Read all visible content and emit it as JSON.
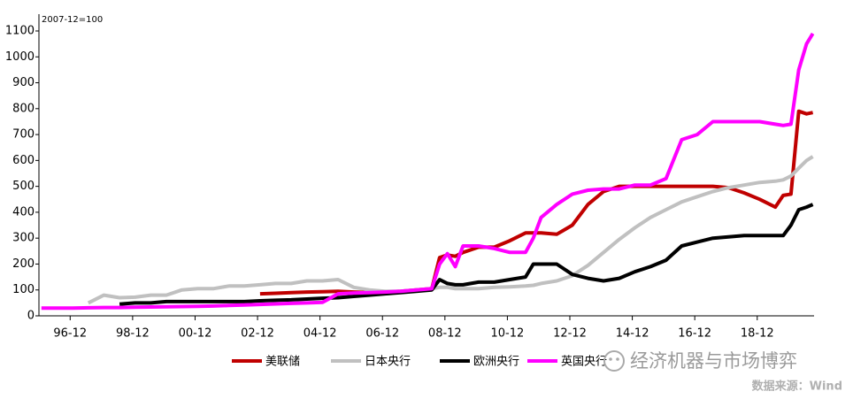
{
  "chart_data": {
    "type": "line",
    "annotation": "2007-12=100",
    "watermark": "经济机器与市场博弈",
    "source": "数据来源：Wind",
    "xlim": [
      1995.92,
      2020.74
    ],
    "xticks": [
      {
        "value": 1996.92,
        "label": "96-12"
      },
      {
        "value": 1998.92,
        "label": "98-12"
      },
      {
        "value": 2000.92,
        "label": "00-12"
      },
      {
        "value": 2002.92,
        "label": "02-12"
      },
      {
        "value": 2004.92,
        "label": "04-12"
      },
      {
        "value": 2006.92,
        "label": "06-12"
      },
      {
        "value": 2008.92,
        "label": "08-12"
      },
      {
        "value": 2010.92,
        "label": "10-12"
      },
      {
        "value": 2012.92,
        "label": "12-12"
      },
      {
        "value": 2014.92,
        "label": "14-12"
      },
      {
        "value": 2016.92,
        "label": "16-12"
      },
      {
        "value": 2018.92,
        "label": "18-12"
      }
    ],
    "ylim": [
      0,
      1100
    ],
    "yticks": [
      0,
      100,
      200,
      300,
      400,
      500,
      600,
      700,
      800,
      900,
      1000,
      1100
    ],
    "x": [
      1996,
      1996.5,
      1997,
      1997.5,
      1998,
      1998.5,
      1999,
      1999.5,
      2000,
      2000.5,
      2001,
      2001.5,
      2002,
      2002.5,
      2003,
      2003.5,
      2004,
      2004.5,
      2005,
      2005.5,
      2006,
      2006.5,
      2007,
      2007.5,
      2008,
      2008.5,
      2008.75,
      2009,
      2009.25,
      2009.5,
      2010,
      2010.5,
      2011,
      2011.5,
      2011.75,
      2012,
      2012.5,
      2013,
      2013.5,
      2014,
      2014.5,
      2015,
      2015.5,
      2016,
      2016.5,
      2017,
      2017.5,
      2018,
      2018.5,
      2019,
      2019.5,
      2019.75,
      2020,
      2020.25,
      2020.5,
      2020.7
    ],
    "series": [
      {
        "name": "美联储",
        "color": "#c00000",
        "values": [
          null,
          null,
          null,
          null,
          null,
          null,
          null,
          null,
          null,
          null,
          null,
          null,
          null,
          null,
          85,
          87,
          90,
          92,
          93,
          95,
          92,
          90,
          92,
          95,
          100,
          105,
          225,
          235,
          230,
          245,
          265,
          265,
          290,
          320,
          320,
          320,
          315,
          350,
          430,
          480,
          500,
          500,
          500,
          500,
          500,
          500,
          500,
          495,
          475,
          450,
          420,
          465,
          470,
          790,
          780,
          785
        ]
      },
      {
        "name": "日本央行",
        "color": "#c0c0c0",
        "values": [
          null,
          null,
          null,
          50,
          80,
          70,
          72,
          80,
          80,
          100,
          105,
          105,
          115,
          115,
          120,
          125,
          125,
          135,
          135,
          140,
          110,
          100,
          95,
          95,
          100,
          105,
          110,
          110,
          105,
          105,
          105,
          110,
          112,
          115,
          118,
          125,
          135,
          155,
          195,
          245,
          295,
          340,
          380,
          410,
          440,
          460,
          480,
          495,
          505,
          515,
          520,
          525,
          540,
          570,
          600,
          615
        ]
      },
      {
        "name": "欧洲央行",
        "color": "#000000",
        "values": [
          null,
          null,
          null,
          null,
          null,
          45,
          50,
          50,
          55,
          55,
          55,
          55,
          55,
          55,
          58,
          60,
          62,
          65,
          68,
          70,
          75,
          80,
          85,
          90,
          95,
          100,
          140,
          125,
          120,
          120,
          130,
          130,
          140,
          150,
          200,
          200,
          200,
          160,
          145,
          135,
          145,
          170,
          190,
          215,
          270,
          285,
          300,
          305,
          310,
          310,
          310,
          310,
          350,
          410,
          420,
          430
        ]
      },
      {
        "name": "英国央行",
        "color": "#ff00ff",
        "values": [
          30,
          30,
          30,
          31,
          32,
          32,
          33,
          34,
          35,
          36,
          37,
          38,
          40,
          42,
          44,
          46,
          48,
          50,
          52,
          85,
          88,
          90,
          92,
          95,
          100,
          105,
          200,
          240,
          190,
          270,
          270,
          260,
          245,
          245,
          300,
          380,
          430,
          470,
          485,
          490,
          490,
          505,
          505,
          530,
          680,
          700,
          750,
          750,
          750,
          750,
          740,
          735,
          740,
          950,
          1050,
          1090
        ]
      }
    ]
  }
}
